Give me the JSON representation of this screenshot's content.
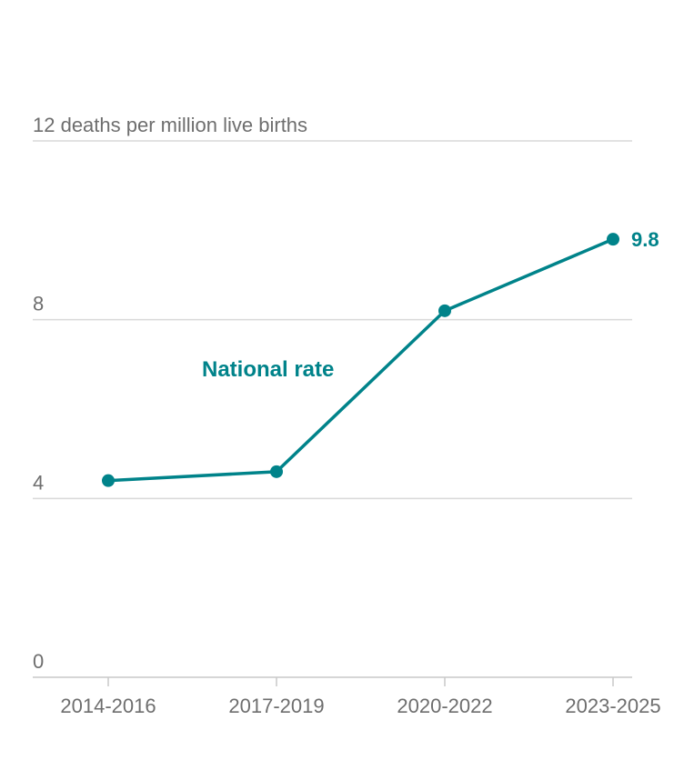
{
  "chart_data": {
    "type": "line",
    "categories": [
      "2014-2016",
      "2017-2019",
      "2020-2022",
      "2023-2025"
    ],
    "series": [
      {
        "name": "National rate",
        "values": [
          4.4,
          4.6,
          8.2,
          9.8
        ],
        "color": "#00838a"
      }
    ],
    "ylim": [
      0,
      12
    ],
    "yticks": [
      0,
      4,
      8,
      12
    ],
    "ytick_labels": [
      "0",
      "4",
      "8",
      "12 deaths per million live births"
    ],
    "end_label": "9.8",
    "grid": true
  }
}
